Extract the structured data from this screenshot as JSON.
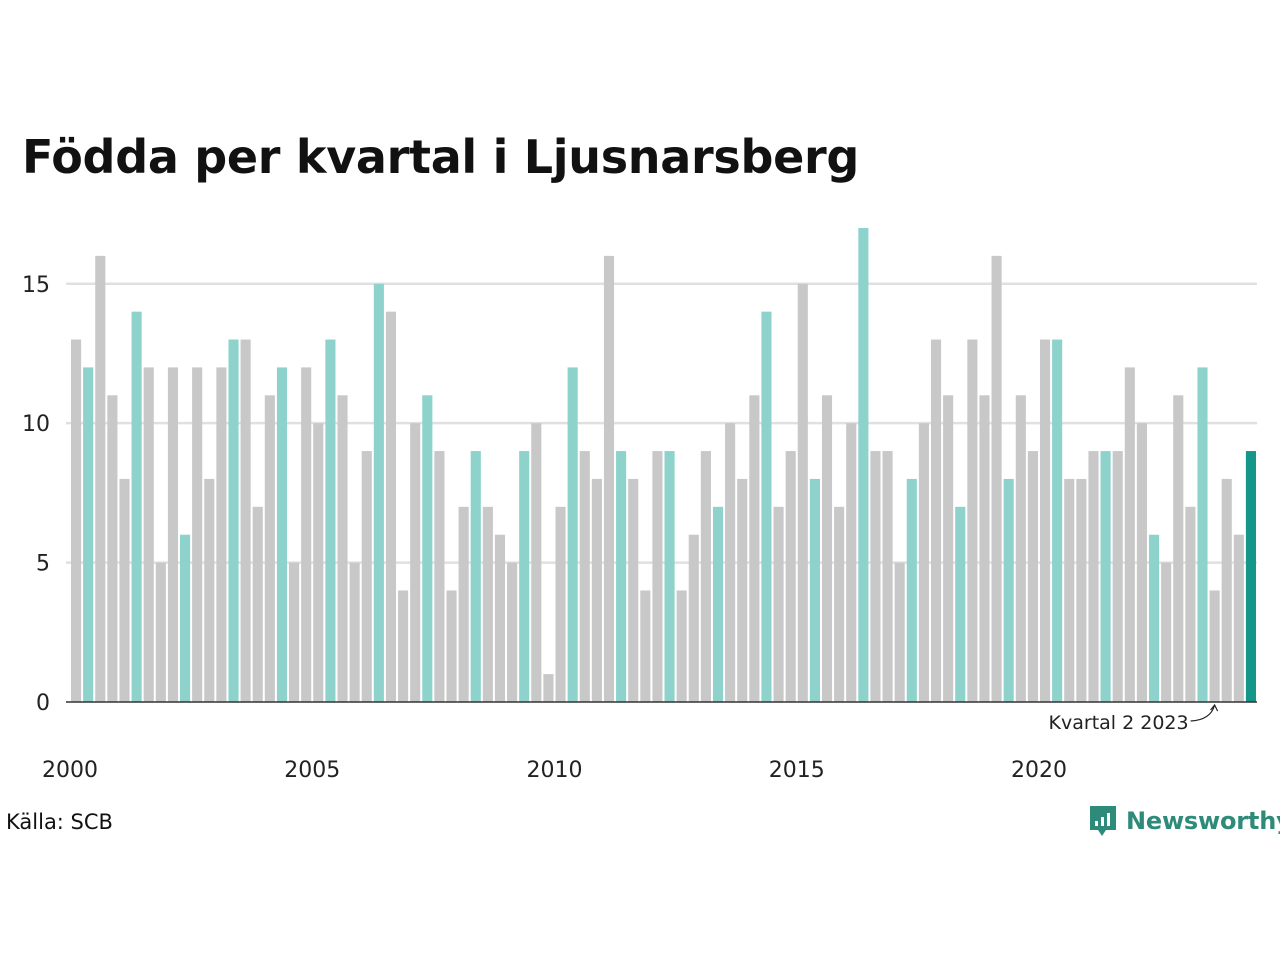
{
  "title": "Födda per kvartal i Ljusnarsberg",
  "source": "Källa: SCB",
  "brand": "Newsworthy",
  "colors": {
    "bar_default": "#c8c8c8",
    "bar_quarter2": "#8dd3cb",
    "bar_latest": "#15968a",
    "brand": "#2e8b7a",
    "grid": "#e0e0e0",
    "axis": "#333333"
  },
  "chart_data": {
    "type": "bar",
    "x_ticks": [
      "2000",
      "2005",
      "2010",
      "2015",
      "2020"
    ],
    "y_ticks": [
      0,
      5,
      10,
      15
    ],
    "ylim": [
      0,
      17
    ],
    "grid": true,
    "highlight_rule": "second quarter of each year",
    "start_year": 2000,
    "values": [
      13,
      12,
      16,
      11,
      8,
      14,
      12,
      5,
      12,
      6,
      12,
      8,
      12,
      13,
      13,
      7,
      11,
      12,
      5,
      12,
      10,
      13,
      11,
      5,
      9,
      15,
      14,
      4,
      10,
      11,
      9,
      4,
      7,
      9,
      7,
      6,
      5,
      9,
      10,
      1,
      7,
      12,
      9,
      8,
      16,
      9,
      8,
      4,
      9,
      9,
      4,
      6,
      9,
      7,
      10,
      8,
      11,
      14,
      7,
      9,
      15,
      8,
      11,
      7,
      10,
      17,
      9,
      9,
      5,
      8,
      10,
      13,
      11,
      7,
      13,
      11,
      16,
      8,
      11,
      9,
      13,
      13,
      8,
      8,
      9,
      9,
      9,
      12,
      10,
      6,
      5,
      11,
      7,
      12,
      4,
      8,
      6,
      9
    ],
    "annotation": {
      "text": "Kvartal 2 2023",
      "target_index": 94
    }
  }
}
